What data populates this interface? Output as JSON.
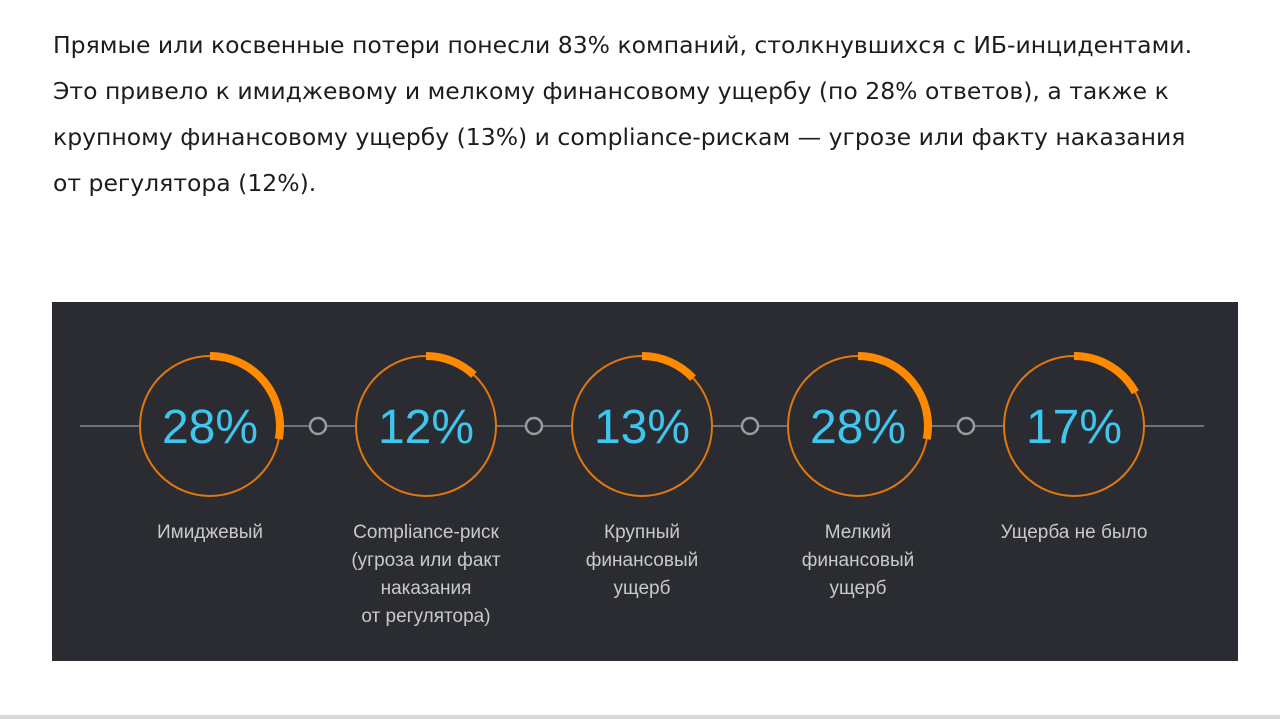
{
  "article": {
    "paragraph": "Прямые или косвенные потери понесли 83% компаний, столкнувшихся с ИБ-инцидентами. Это привело к имиджевому и мелкому финансовому ущербу (по 28% ответов), а также к крупному финансовому ущербу (13%) и compliance-рискам — угрозе или факту наказания от регулятора (12%)."
  },
  "chart_data": {
    "type": "donut-row",
    "unit": "%",
    "categories": [
      "Имиджевый",
      "Compliance-риск (угроза или факт наказания от регулятора)",
      "Крупный финансовый ущерб",
      "Мелкий финансовый ущерб",
      "Ущерба не было"
    ],
    "values": [
      28,
      12,
      13,
      28,
      17
    ],
    "value_labels": [
      "28%",
      "12%",
      "13%",
      "28%",
      "17%"
    ],
    "label_lines": [
      "Имиджевый",
      "Compliance-риск\n(угроза или факт\nнаказания\nот регулятора)",
      "Крупный\nфинансовый\nущерб",
      "Мелкий\nфинансовый\nущерб",
      "Ущерба не было"
    ],
    "colors": {
      "background": "#2a2c32",
      "ring": "#e0780f",
      "arc": "#ff8a00",
      "value_text": "#3fc6ee",
      "connector": "#9a9ca1",
      "label_text": "#c8c9cc"
    }
  }
}
